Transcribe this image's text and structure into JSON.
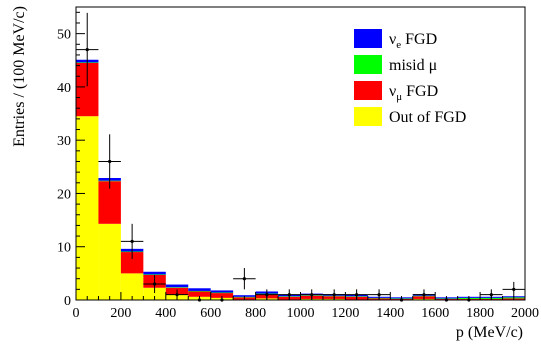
{
  "chart_data": {
    "type": "bar",
    "stacked": true,
    "xlabel": "p (MeV/c)",
    "ylabel": "Entries / (100 MeV/c)",
    "xlim": [
      0,
      2000
    ],
    "ylim": [
      0,
      55
    ],
    "x_ticks": [
      0,
      200,
      400,
      600,
      800,
      1000,
      1200,
      1400,
      1600,
      1800,
      2000
    ],
    "y_ticks": [
      0,
      10,
      20,
      30,
      40,
      50
    ],
    "bin_width": 100,
    "bin_centers": [
      50,
      150,
      250,
      350,
      450,
      550,
      650,
      750,
      850,
      950,
      1050,
      1150,
      1250,
      1350,
      1450,
      1550,
      1650,
      1750,
      1850,
      1950
    ],
    "series": [
      {
        "name": "Out of FGD",
        "color": "#ffff00",
        "values": [
          34.5,
          14.3,
          5.0,
          2.3,
          1.0,
          0.6,
          0.4,
          0.1,
          0.3,
          0.1,
          0.2,
          0.2,
          0.1,
          0.1,
          0.1,
          0.2,
          0.1,
          0.1,
          0.1,
          0.1
        ]
      },
      {
        "name": "ν_μ FGD",
        "color": "#ff0000",
        "values": [
          10.0,
          8.0,
          4.0,
          2.4,
          1.3,
          1.0,
          0.9,
          0.4,
          0.8,
          0.5,
          0.6,
          0.5,
          0.5,
          0.2,
          0.1,
          0.5,
          0.1,
          0.1,
          0.1,
          0.2
        ]
      },
      {
        "name": "misid μ",
        "color": "#00ff00",
        "values": [
          0.1,
          0.1,
          0.1,
          0.1,
          0.1,
          0.1,
          0.1,
          0.1,
          0.1,
          0.1,
          0.1,
          0.1,
          0.1,
          0.1,
          0.1,
          0.1,
          0.1,
          0.2,
          0.2,
          0.2
        ]
      },
      {
        "name": "ν_e FGD",
        "color": "#0000ff",
        "values": [
          0.5,
          0.5,
          0.5,
          0.5,
          0.5,
          0.5,
          0.4,
          0.3,
          0.4,
          0.3,
          0.3,
          0.3,
          0.3,
          0.2,
          0.2,
          0.3,
          0.2,
          0.2,
          0.2,
          0.2
        ]
      }
    ],
    "data_points": {
      "x": [
        50,
        150,
        250,
        350,
        450,
        550,
        650,
        750,
        850,
        950,
        1050,
        1150,
        1250,
        1350,
        1450,
        1550,
        1650,
        1750,
        1850,
        1950
      ],
      "y": [
        47,
        26,
        11,
        3,
        1,
        0,
        0,
        4,
        1,
        1,
        1,
        1,
        1,
        1,
        0,
        1,
        0,
        0,
        1,
        2
      ],
      "yerr": [
        6.9,
        5.1,
        3.3,
        1.7,
        1.0,
        0,
        0,
        2.0,
        1.0,
        1.0,
        1.0,
        1.0,
        1.0,
        1.0,
        0,
        1.0,
        0,
        0,
        1.0,
        1.4
      ]
    },
    "legend": {
      "position": "top-right",
      "entries": [
        {
          "main": "ν",
          "sub": "e",
          "rest": " FGD",
          "color": "#0000ff"
        },
        {
          "main": "misid μ",
          "sub": "",
          "rest": "",
          "color": "#00ff00"
        },
        {
          "main": "ν",
          "sub": "μ",
          "rest": " FGD",
          "color": "#ff0000"
        },
        {
          "main": "Out of FGD",
          "sub": "",
          "rest": "",
          "color": "#ffff00"
        }
      ]
    }
  }
}
